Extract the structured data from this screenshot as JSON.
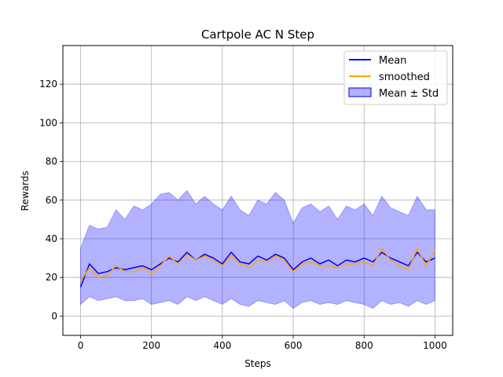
{
  "chart_data": {
    "type": "line",
    "title": "Cartpole AC N Step",
    "xlabel": "Steps",
    "ylabel": "Rewards",
    "xlim": [
      -50,
      1050
    ],
    "ylim": [
      -10,
      140
    ],
    "x_ticks": [
      0,
      200,
      400,
      600,
      800,
      1000
    ],
    "y_ticks": [
      0,
      20,
      40,
      60,
      80,
      100,
      120
    ],
    "grid": true,
    "legend_position": "top-right",
    "series": [
      {
        "name": "Mean",
        "kind": "line",
        "color": "#0000ff"
      },
      {
        "name": "smoothed",
        "kind": "line",
        "color": "#ffa500"
      },
      {
        "name": "Mean ± Std",
        "kind": "band",
        "color": "#0000ff"
      }
    ],
    "x_points": [
      0,
      25,
      50,
      75,
      100,
      125,
      150,
      175,
      200,
      225,
      250,
      275,
      300,
      325,
      350,
      375,
      400,
      425,
      450,
      475,
      500,
      525,
      550,
      575,
      600,
      625,
      650,
      675,
      700,
      725,
      750,
      775,
      800,
      825,
      850,
      875,
      900,
      925,
      950,
      975,
      1000
    ],
    "mean_values": [
      15,
      27,
      22,
      23,
      25,
      24,
      25,
      26,
      24,
      27,
      30,
      28,
      33,
      29,
      32,
      30,
      27,
      33,
      28,
      27,
      31,
      29,
      32,
      30,
      24,
      28,
      30,
      27,
      29,
      26,
      29,
      28,
      30,
      28,
      33,
      30,
      28,
      26,
      33,
      28,
      30
    ],
    "smoothed_values": [
      18,
      25,
      20,
      21,
      26,
      23,
      23,
      25,
      22,
      26,
      31,
      27,
      32,
      29,
      31,
      29,
      26,
      31,
      27,
      25,
      29,
      28,
      31,
      29,
      23,
      27,
      28,
      26,
      26,
      25,
      27,
      27,
      28,
      26,
      35,
      29,
      26,
      24,
      35,
      26,
      34
    ],
    "std_upper": [
      35,
      47,
      45,
      46,
      55,
      50,
      57,
      55,
      58,
      63,
      64,
      60,
      65,
      58,
      62,
      58,
      55,
      62,
      55,
      52,
      60,
      58,
      64,
      60,
      48,
      56,
      58,
      54,
      57,
      50,
      57,
      55,
      58,
      52,
      62,
      56,
      54,
      52,
      62,
      55,
      55
    ],
    "std_lower": [
      6,
      10,
      8,
      9,
      10,
      8,
      8,
      9,
      6,
      7,
      8,
      6,
      10,
      8,
      10,
      8,
      6,
      9,
      6,
      5,
      8,
      7,
      6,
      8,
      4,
      7,
      8,
      6,
      7,
      6,
      8,
      7,
      6,
      4,
      8,
      6,
      7,
      5,
      8,
      6,
      8
    ]
  }
}
